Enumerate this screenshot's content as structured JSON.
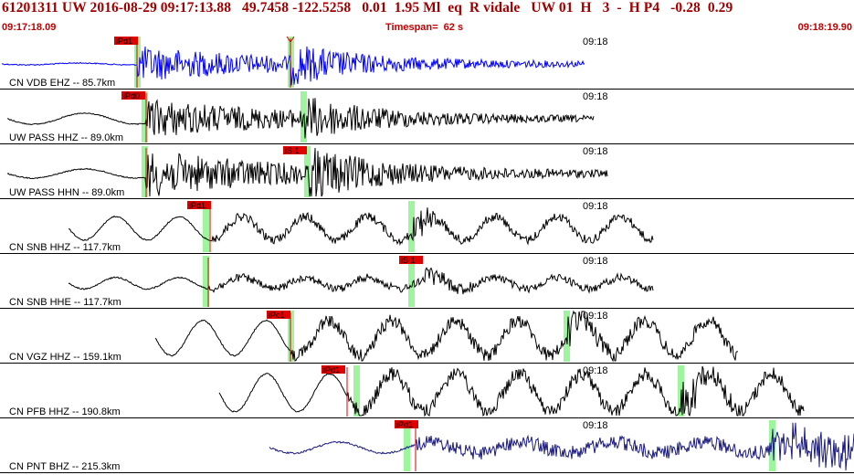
{
  "header": {
    "title": "61201311 UW 2016-08-29 09:17:13.88   49.7458 -122.5258   0.01  1.95 Ml  eq  R vidale   UW 01  H   3  -  H P4   -0.28  0.29",
    "start_time": "09:17:18.09",
    "timespan": "Timespan=  62 s",
    "end_time": "09:18:19.90"
  },
  "traces": [
    {
      "label": "CN VDB EHZ -- 85.7km",
      "time_label": "09:18",
      "color": "#0000ff",
      "picks": [
        {
          "label": "iPd1",
          "flag": "red",
          "line": "red"
        },
        {
          "label": "",
          "flag": "none",
          "line": "red"
        }
      ],
      "green_marks": 2
    },
    {
      "label": "UW PASS HHZ -- 89.0km",
      "time_label": "09:18",
      "color": "#000000",
      "picks": [
        {
          "label": "iPd0",
          "flag": "red",
          "line": "red"
        }
      ],
      "green_marks": 2
    },
    {
      "label": "UW PASS HHN -- 89.0km",
      "time_label": "09:18",
      "color": "#000000",
      "picks": [
        {
          "label": "iS 1",
          "flag": "red",
          "line": "red"
        }
      ],
      "green_marks": 2
    },
    {
      "label": "CN SNB HHZ -- 117.7km",
      "time_label": "09:18",
      "color": "#000000",
      "picks": [
        {
          "label": "iPd1",
          "flag": "red",
          "line": "red"
        }
      ],
      "green_marks": 2
    },
    {
      "label": "CN SNB HHE -- 117.7km",
      "time_label": "09:18",
      "color": "#000000",
      "picks": [
        {
          "label": "iS 1",
          "flag": "red",
          "line": "red"
        }
      ],
      "green_marks": 2
    },
    {
      "label": "CN VGZ HHZ -- 159.1km",
      "time_label": "09:18",
      "color": "#000000",
      "picks": [
        {
          "label": "iPc1",
          "flag": "red",
          "line": "red"
        }
      ],
      "green_marks": 2
    },
    {
      "label": "CN PFB HHZ -- 190.8km",
      "time_label": "09:18",
      "color": "#000000",
      "picks": [
        {
          "label": "iPd1",
          "flag": "red",
          "line": "red"
        }
      ],
      "green_marks": 2
    },
    {
      "label": "CN PNT BHZ -- 215.3km",
      "time_label": "09:18",
      "color": "#1a1a80",
      "picks": [
        {
          "label": "iPd1",
          "flag": "red",
          "line": "red"
        }
      ],
      "green_marks": 2
    }
  ]
}
